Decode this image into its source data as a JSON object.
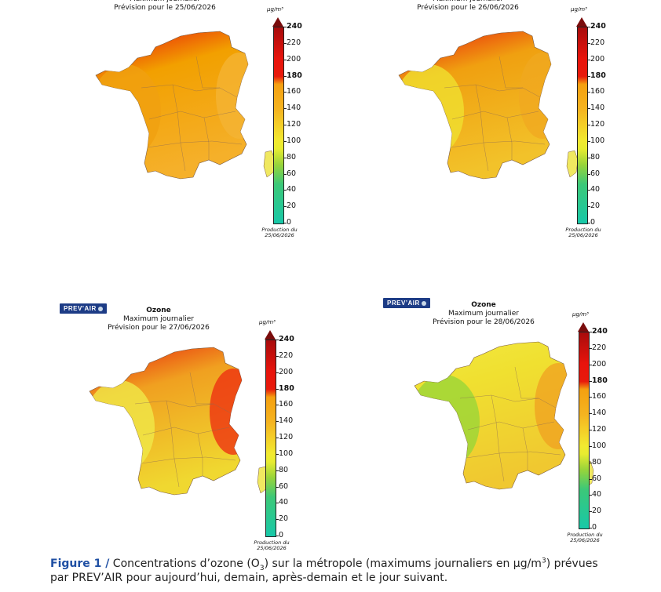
{
  "maps": [
    {
      "logo": "",
      "title": "",
      "subtitle1": "Maximum journalier",
      "subtitle2": "Prévision pour le 25/06/2026",
      "unit": "µg/m³",
      "production": "Production du",
      "production_date": "25/06/2026",
      "levels": {
        "north": "#e8120c",
        "center": "#f2a000",
        "south": "#f5b02a",
        "west": "#f0a010",
        "east": "#f4b435",
        "corsica": "#f0e860"
      }
    },
    {
      "logo": "",
      "title": "",
      "subtitle1": "Maximum journalier",
      "subtitle2": "Prévision pour le 26/06/2026",
      "unit": "µg/m³",
      "production": "Production du",
      "production_date": "25/06/2026",
      "levels": {
        "north": "#e81a0c",
        "center": "#f0a010",
        "south": "#f2c22a",
        "west": "#f0e030",
        "east": "#f0a820",
        "corsica": "#f0e860"
      }
    },
    {
      "logo": "PREV’AIR",
      "title": "Ozone",
      "subtitle1": "Maximum journalier",
      "subtitle2": "Prévision pour le 27/06/2026",
      "unit": "µg/m³",
      "production": "Production du",
      "production_date": "25/06/2026",
      "levels": {
        "north": "#e8200c",
        "center": "#f0a020",
        "south": "#f0d830",
        "west": "#f0e848",
        "east": "#ee2a10",
        "corsica": "#f0e860"
      }
    },
    {
      "logo": "PREV’AIR",
      "title": "Ozone",
      "subtitle1": "Maximum journalier",
      "subtitle2": "Prévision pour le 28/06/2026",
      "unit": "µg/m³",
      "production": "Production du",
      "production_date": "25/06/2026",
      "levels": {
        "north": "#f2e840",
        "center": "#f0e030",
        "south": "#f0c830",
        "west": "#9ad638",
        "east": "#f0a020",
        "corsica": "#f0e860"
      }
    }
  ],
  "scale": {
    "ticks": [
      "240",
      "220",
      "200",
      "180",
      "160",
      "140",
      "120",
      "100",
      "80",
      "60",
      "40",
      "20",
      "0"
    ],
    "bold_ticks": [
      "240",
      "180"
    ]
  },
  "caption": {
    "label": "Figure 1 /",
    "text_before": " Concentrations d’ozone (O",
    "sub": "3",
    "text_mid": ") sur la métropole (maximums journaliers en µg/m",
    "sup": "3",
    "text_after": ") prévues par PREV’AIR pour aujourd’hui, demain, après-demain et le jour suivant."
  }
}
